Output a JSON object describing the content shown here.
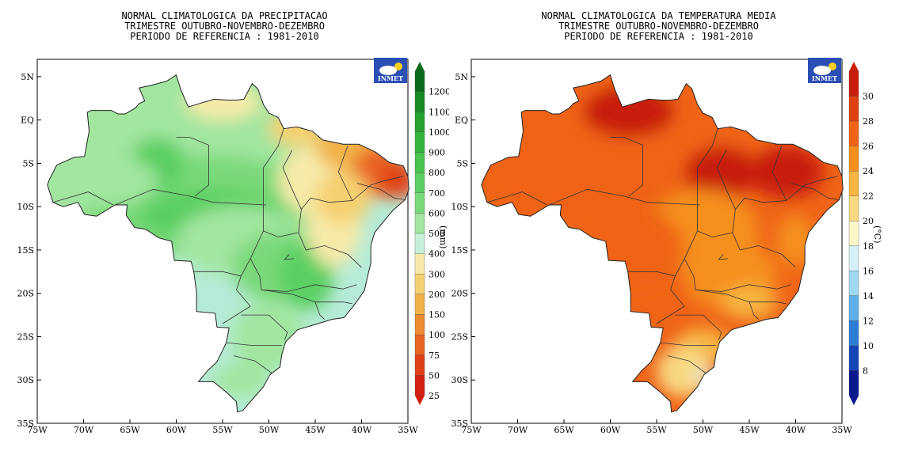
{
  "maps": [
    {
      "title_lines": [
        "NORMAL CLIMATOLOGICA DA PRECIPITACAO",
        "TRIMESTRE OUTUBRO-NOVEMBRO-DEZEMBRO",
        "PERIODO DE REFERENCIA : 1981-2010"
      ],
      "logo_text": "INMET",
      "variable": "precipitation",
      "unit_label": "(mm)",
      "lat_labels": [
        "5N",
        "EQ",
        "5S",
        "10S",
        "15S",
        "20S",
        "25S",
        "30S",
        "35S"
      ],
      "lon_labels": [
        "75W",
        "70W",
        "65W",
        "60W",
        "55W",
        "50W",
        "45W",
        "40W",
        "35W"
      ],
      "colorbar_labels": [
        "1200",
        "1100",
        "1000",
        "900",
        "800",
        "700",
        "600",
        "500",
        "400",
        "300",
        "200",
        "150",
        "100",
        "75",
        "50",
        "25"
      ],
      "colorbar_colors": [
        "#0a6b1a",
        "#178a23",
        "#24a12f",
        "#33b53d",
        "#46c44e",
        "#5ccf62",
        "#79d97a",
        "#a2e6a0",
        "#c6f0d8",
        "#f7eaa8",
        "#f5d070",
        "#f2b24a",
        "#ee8a30",
        "#e86420",
        "#e04018",
        "#d42010"
      ]
    },
    {
      "title_lines": [
        "NORMAL CLIMATOLOGICA DA TEMPERATURA MEDIA",
        "TRIMESTRE OUTUBRO-NOVEMBRO-DEZEMBRO",
        "PERIODO DE REFERENCIA : 1981-2010"
      ],
      "logo_text": "INMET",
      "variable": "mean temperature",
      "unit_label": "(°C)",
      "lat_labels": [
        "5N",
        "EQ",
        "5S",
        "10S",
        "15S",
        "20S",
        "25S",
        "30S",
        "35S"
      ],
      "lon_labels": [
        "75W",
        "70W",
        "65W",
        "60W",
        "55W",
        "50W",
        "45W",
        "40W",
        "35W"
      ],
      "colorbar_labels": [
        "30",
        "28",
        "26",
        "24",
        "22",
        "20",
        "18",
        "16",
        "14",
        "12",
        "10",
        "8"
      ],
      "colorbar_colors": [
        "#c81e0a",
        "#e0400f",
        "#f06418",
        "#f5901e",
        "#f7b440",
        "#f8d880",
        "#fdf6c8",
        "#d6f0f8",
        "#9fd8f0",
        "#5fb0e8",
        "#2e7ed8",
        "#1446b8",
        "#0a1a8c"
      ]
    }
  ]
}
